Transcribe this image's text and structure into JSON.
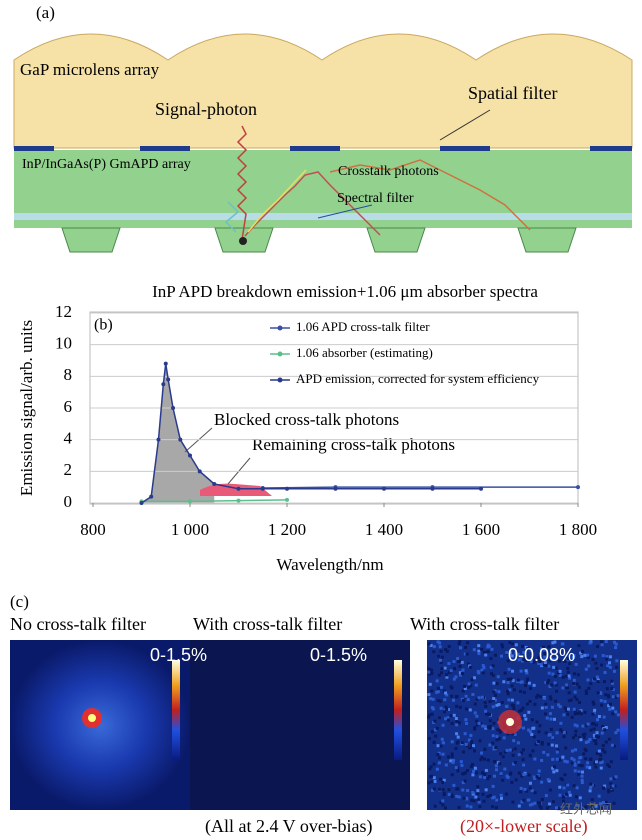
{
  "panel_a": {
    "label": "(a)",
    "microlens": "GaP microlens array",
    "signal": "Signal-photon",
    "spatial_filter": "Spatial filter",
    "apd_array": "InP/InGaAs(P) GmAPD array",
    "crosstalk": "Crosstalk photons",
    "spectral_filter": "Spectral filter"
  },
  "chart_data": {
    "type": "line",
    "panel_label": "(b)",
    "title": "InP APD breakdown emission+1.06 μm absorber spectra",
    "x_label": "Wavelength/nm",
    "y_label": "Emission signal/arb. units",
    "xlim": [
      800,
      1800
    ],
    "xticks": [
      800,
      {
        "value": 1000,
        "label": "1 000"
      },
      {
        "value": 1200,
        "label": "1 200"
      },
      {
        "value": 1400,
        "label": "1 400"
      },
      {
        "value": 1600,
        "label": "1 600"
      },
      {
        "value": 1800,
        "label": "1 800"
      }
    ],
    "ylim": [
      0,
      12
    ],
    "yticks": [
      0,
      2,
      4,
      6,
      8,
      10,
      12
    ],
    "grid": true,
    "series": [
      {
        "name": "1.06 APD cross-talk filter",
        "color": "#3a4fa0",
        "x": [
          1150,
          1300,
          1500,
          1800
        ],
        "values": [
          0.95,
          1,
          1,
          1
        ]
      },
      {
        "name": "1.06 absorber (estimating)",
        "color": "#5cbf8a",
        "x": [
          900,
          1000,
          1100,
          1200
        ],
        "values": [
          0.1,
          0.1,
          0.15,
          0.2
        ]
      },
      {
        "name": "APD emission, corrected for system efficiency",
        "color": "#2a3a8c",
        "x": [
          900,
          920,
          935,
          945,
          950,
          955,
          965,
          980,
          1000,
          1020,
          1050,
          1100,
          1150,
          1200,
          1300,
          1400,
          1500,
          1600
        ],
        "values": [
          0,
          0.4,
          4,
          7.5,
          8.8,
          7.8,
          6,
          4,
          3,
          2,
          1.2,
          0.9,
          0.9,
          0.9,
          0.9,
          0.9,
          0.9,
          0.9
        ]
      }
    ],
    "annotations": [
      "Blocked cross-talk photons",
      "Remaining cross-talk photons"
    ]
  },
  "panel_c": {
    "label": "(c)",
    "titles": [
      "No cross-talk filter",
      "With cross-talk filter",
      "With cross-talk filter"
    ],
    "scales": [
      "0-1.5%",
      "0-1.5%",
      "0-0.08%"
    ],
    "footer": "(All at 2.4 V over-bias)",
    "footer_note": "(20×-lower scale)",
    "watermark": "红外芯闻"
  }
}
